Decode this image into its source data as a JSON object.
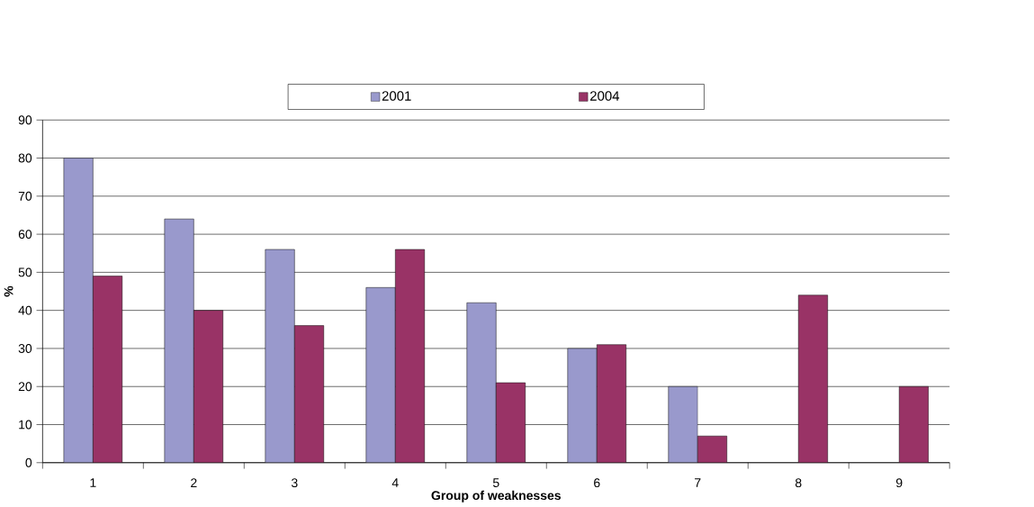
{
  "chart_data": {
    "type": "bar",
    "xlabel": "Group of weaknesses",
    "ylabel": "%",
    "categories": [
      "1",
      "2",
      "3",
      "4",
      "5",
      "6",
      "7",
      "8",
      "9"
    ],
    "series": [
      {
        "name": "2001",
        "color": "#9999cc",
        "values": [
          80,
          64,
          56,
          46,
          42,
          30,
          20,
          null,
          null
        ]
      },
      {
        "name": "2004",
        "color": "#993366",
        "values": [
          49,
          40,
          36,
          56,
          21,
          31,
          7,
          44,
          20
        ]
      }
    ],
    "ylim": [
      0,
      90
    ],
    "yticks": [
      0,
      10,
      20,
      30,
      40,
      50,
      60,
      70,
      80,
      90
    ],
    "grid": "y",
    "legend": "top"
  }
}
